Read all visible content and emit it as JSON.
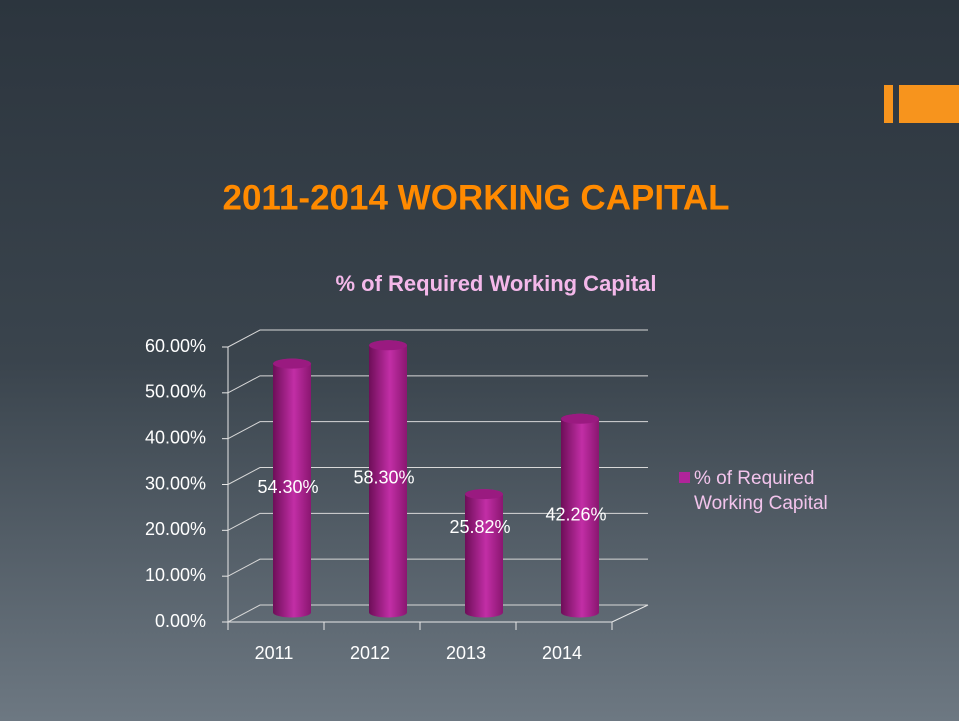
{
  "chart_data": {
    "type": "bar",
    "slide_title": "2011-2014 WORKING CAPITAL",
    "title": "% of Required Working Capital",
    "categories": [
      "2011",
      "2012",
      "2013",
      "2014"
    ],
    "series": [
      {
        "name": "% of Required Working Capital",
        "color": "#b0249a",
        "values": [
          54.3,
          58.3,
          25.82,
          42.26
        ],
        "value_labels": [
          "54.30%",
          "58.30%",
          "25.82%",
          "42.26%"
        ]
      }
    ],
    "ylim": [
      0,
      60
    ],
    "yticks": [
      {
        "value": 0,
        "label": "0.00%"
      },
      {
        "value": 10,
        "label": "10.00%"
      },
      {
        "value": 20,
        "label": "20.00%"
      },
      {
        "value": 30,
        "label": "30.00%"
      },
      {
        "value": 40,
        "label": "40.00%"
      },
      {
        "value": 50,
        "label": "50.00%"
      },
      {
        "value": 60,
        "label": "60.00%"
      }
    ],
    "grid": true,
    "legend": "right"
  }
}
